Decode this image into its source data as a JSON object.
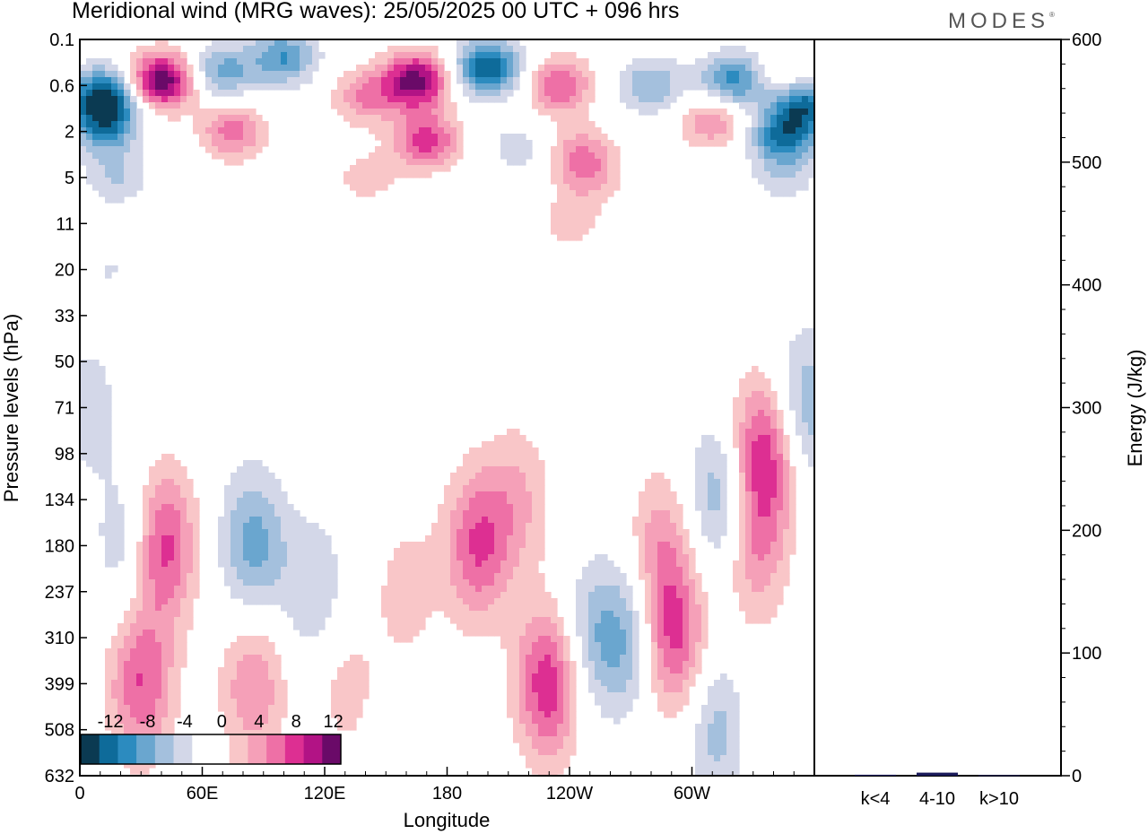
{
  "title": "Meridional wind (MRG waves):  25/05/2025  00 UTC  + 096 hrs",
  "brand": "MODES",
  "chart_data": [
    {
      "type": "heatmap",
      "xlabel": "Longitude",
      "ylabel": "Pressure levels (hPa)",
      "x_ticks": [
        "0",
        "60E",
        "120E",
        "180",
        "120W",
        "60W"
      ],
      "x_tick_degrees": [
        0,
        60,
        120,
        180,
        240,
        300
      ],
      "x_range": [
        0,
        360
      ],
      "y_ticks": [
        "0.1",
        "0.6",
        "2",
        "5",
        "11",
        "20",
        "33",
        "50",
        "71",
        "98",
        "134",
        "180",
        "237",
        "310",
        "399",
        "508",
        "632"
      ],
      "y_axis": "pressure levels, 0.1 at top to 632 at bottom",
      "colorbar": {
        "labels": [
          "-12",
          "-8",
          "-4",
          "0",
          "4",
          "8",
          "12"
        ],
        "colors": [
          "#0b3a52",
          "#0e6b9a",
          "#2c8bbf",
          "#6aa6cf",
          "#a4c0dd",
          "#d3d7e8",
          "#ffffff",
          "#ffffff",
          "#f9c6c8",
          "#f5a0b8",
          "#ee70a6",
          "#dd2f92",
          "#b21385",
          "#6a0a68"
        ]
      },
      "blobs": [
        {
          "lon": 12,
          "lev": 0.8,
          "v": -13
        },
        {
          "lon": 40,
          "lev": 0.5,
          "v": 14
        },
        {
          "lon": 70,
          "lev": 0.35,
          "v": -7
        },
        {
          "lon": 100,
          "lev": 0.2,
          "v": -8
        },
        {
          "lon": 140,
          "lev": 0.8,
          "v": 6
        },
        {
          "lon": 165,
          "lev": 0.5,
          "v": 13
        },
        {
          "lon": 200,
          "lev": 0.3,
          "v": -12
        },
        {
          "lon": 235,
          "lev": 0.6,
          "v": 8
        },
        {
          "lon": 280,
          "lev": 0.6,
          "v": -6
        },
        {
          "lon": 320,
          "lev": 0.5,
          "v": -9
        },
        {
          "lon": 350,
          "lev": 0.5,
          "v": 5
        },
        {
          "lon": 12,
          "lev": 1.8,
          "v": -8
        },
        {
          "lon": 75,
          "lev": 2.0,
          "v": 7
        },
        {
          "lon": 170,
          "lev": 2.4,
          "v": 9
        },
        {
          "lon": 215,
          "lev": 2.8,
          "v": -3
        },
        {
          "lon": 245,
          "lev": 3.0,
          "v": 5
        },
        {
          "lon": 310,
          "lev": 1.5,
          "v": 6
        },
        {
          "lon": 345,
          "lev": 2.2,
          "v": -10
        },
        {
          "lon": 355,
          "lev": 0.9,
          "v": -12
        },
        {
          "lon": 18,
          "lev": 5.0,
          "v": -4
        },
        {
          "lon": 140,
          "lev": 5.0,
          "v": 3
        },
        {
          "lon": 250,
          "lev": 5.0,
          "v": 4
        },
        {
          "lon": 345,
          "lev": 5.0,
          "v": -3
        },
        {
          "lon": 240,
          "lev": 11.0,
          "v": 3
        },
        {
          "lon": 300,
          "lev": 11.0,
          "v": -2
        },
        {
          "lon": 15,
          "lev": 20.0,
          "v": -2
        },
        {
          "lon": 55,
          "lev": 40.0,
          "v": 2
        },
        {
          "lon": 5,
          "lev": 71.0,
          "v": -3
        },
        {
          "lon": 25,
          "lev": 180.0,
          "v": -5
        },
        {
          "lon": 40,
          "lev": 180.0,
          "v": 10
        },
        {
          "lon": 30,
          "lev": 399.0,
          "v": 8
        },
        {
          "lon": 85,
          "lev": 180.0,
          "v": -7
        },
        {
          "lon": 115,
          "lev": 237.0,
          "v": -4
        },
        {
          "lon": 85,
          "lev": 399.0,
          "v": 6
        },
        {
          "lon": 130,
          "lev": 399.0,
          "v": 3
        },
        {
          "lon": 160,
          "lev": 237.0,
          "v": 3
        },
        {
          "lon": 195,
          "lev": 180.0,
          "v": 8
        },
        {
          "lon": 215,
          "lev": 134.0,
          "v": 4
        },
        {
          "lon": 230,
          "lev": 399.0,
          "v": 10
        },
        {
          "lon": 250,
          "lev": 310.0,
          "v": -5
        },
        {
          "lon": 270,
          "lev": 310.0,
          "v": -6
        },
        {
          "lon": 290,
          "lev": 310.0,
          "v": 9
        },
        {
          "lon": 285,
          "lev": 180.0,
          "v": 5
        },
        {
          "lon": 315,
          "lev": 134.0,
          "v": -7
        },
        {
          "lon": 335,
          "lev": 98.0,
          "v": 10
        },
        {
          "lon": 330,
          "lev": 180.0,
          "v": 6
        },
        {
          "lon": 315,
          "lev": 508.0,
          "v": -6
        },
        {
          "lon": 330,
          "lev": 508.0,
          "v": 3
        },
        {
          "lon": 355,
          "lev": 71.0,
          "v": -6
        }
      ]
    },
    {
      "type": "bar",
      "categories": [
        "k<4",
        "4-10",
        "k>10"
      ],
      "values": [
        0.8,
        2.5,
        0.5
      ],
      "ylabel": "Energy (J/kg)",
      "ylim": [
        0,
        600
      ],
      "y_ticks": [
        "0",
        "100",
        "200",
        "300",
        "400",
        "500",
        "600"
      ]
    }
  ]
}
